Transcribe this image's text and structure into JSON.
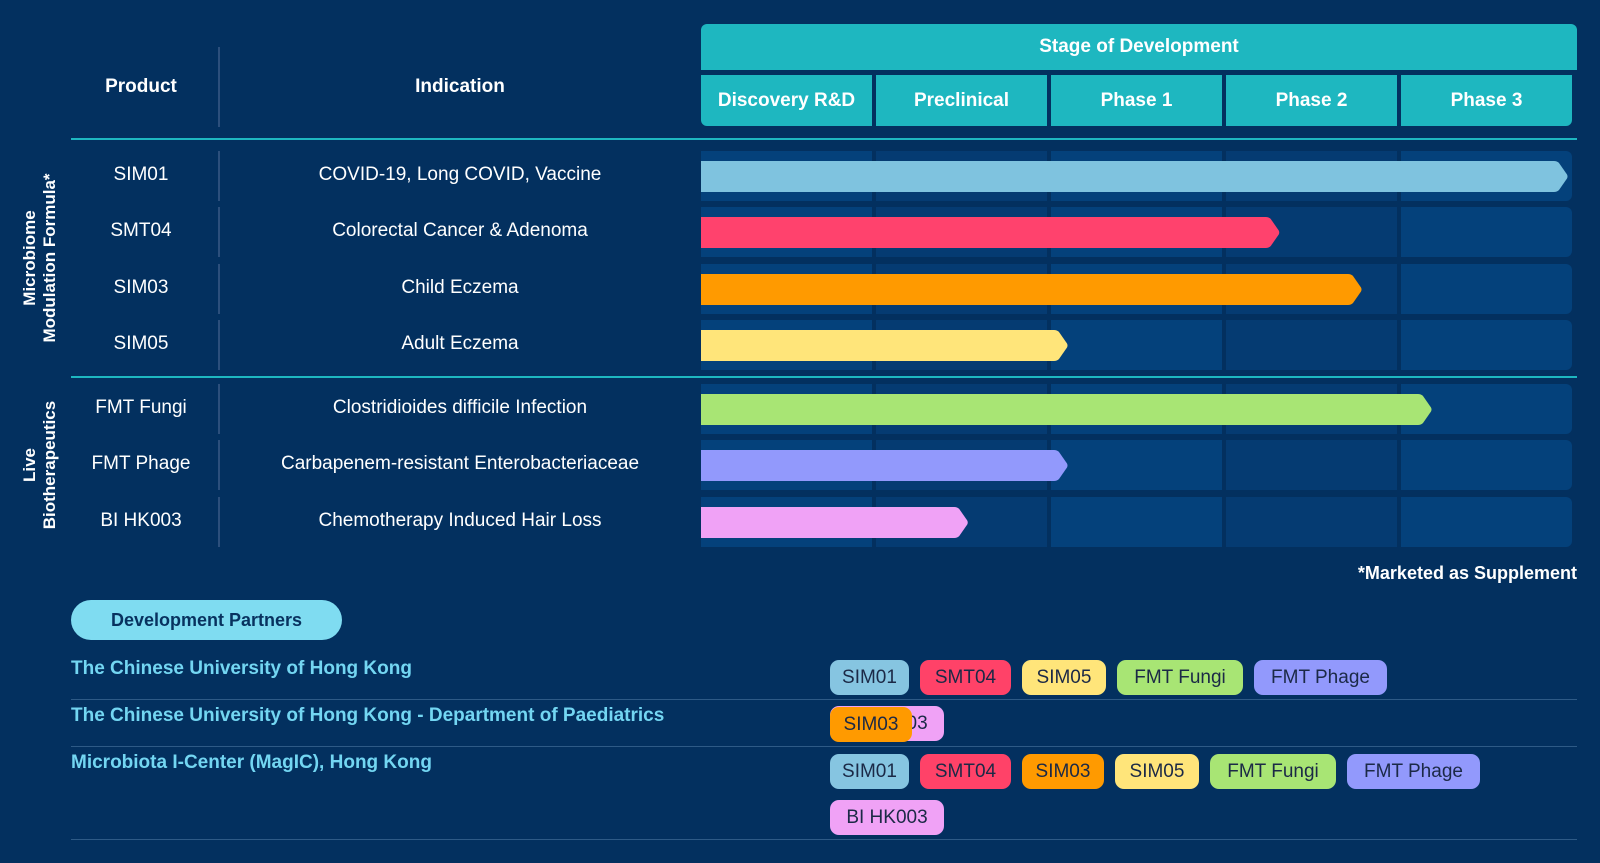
{
  "header": {
    "product": "Product",
    "indication": "Indication",
    "stage_title": "Stage of Development",
    "stages": [
      "Discovery R&D",
      "Preclinical",
      "Phase 1",
      "Phase 2",
      "Phase 3"
    ]
  },
  "groups": [
    {
      "label_lines": [
        "Microbiome",
        "Modulation Formula*"
      ]
    },
    {
      "label_lines": [
        "Live",
        "Biotherapeutics"
      ]
    }
  ],
  "rows": [
    {
      "product": "SIM01",
      "indication": "COVID-19, Long COVID, Vaccine",
      "progress_stages": 5.0,
      "color": "#7fc3df"
    },
    {
      "product": "SMT04",
      "indication": "Colorectal Cancer & Adenoma",
      "progress_stages": 3.33,
      "color": "#ff426d"
    },
    {
      "product": "SIM03",
      "indication": "Child Eczema",
      "progress_stages": 3.8,
      "color": "#ff9a00"
    },
    {
      "product": "SIM05",
      "indication": "Adult Eczema",
      "progress_stages": 2.12,
      "color": "#ffe57a"
    },
    {
      "product": "FMT Fungi",
      "indication": "Clostridioides difficile Infection",
      "progress_stages": 4.2,
      "color": "#a8e574"
    },
    {
      "product": "FMT Phage",
      "indication": "Carbapenem-resistant Enterobacteriaceae",
      "progress_stages": 2.12,
      "color": "#9299fc"
    },
    {
      "product": "BI HK003",
      "indication": "Chemotherapy Induced Hair Loss",
      "progress_stages": 1.55,
      "color": "#f0a2f6"
    }
  ],
  "note": "*Marketed as Supplement",
  "partners_title": "Development Partners",
  "partners": [
    {
      "name": "The Chinese University of Hong Kong",
      "tags": [
        "SIM01",
        "SMT04",
        "SIM05",
        "FMT Fungi",
        "FMT Phage",
        "BI HK003"
      ]
    },
    {
      "name": "The Chinese University of Hong Kong - Department of Paediatrics",
      "tags": [
        "SIM03"
      ]
    },
    {
      "name": "Microbiota I-Center (MagIC), Hong Kong",
      "tags": [
        "SIM01",
        "SMT04",
        "SIM03",
        "SIM05",
        "FMT Fungi",
        "FMT Phage",
        "BI HK003"
      ]
    }
  ],
  "tag_colors": {
    "SIM01": "#86c5e1",
    "SMT04": "#ff4268",
    "SIM03": "#ff9a00",
    "SIM05": "#ffe57a",
    "FMT Fungi": "#a8e574",
    "FMT Phage": "#9299fc",
    "BI HK003": "#f0a2f6"
  }
}
